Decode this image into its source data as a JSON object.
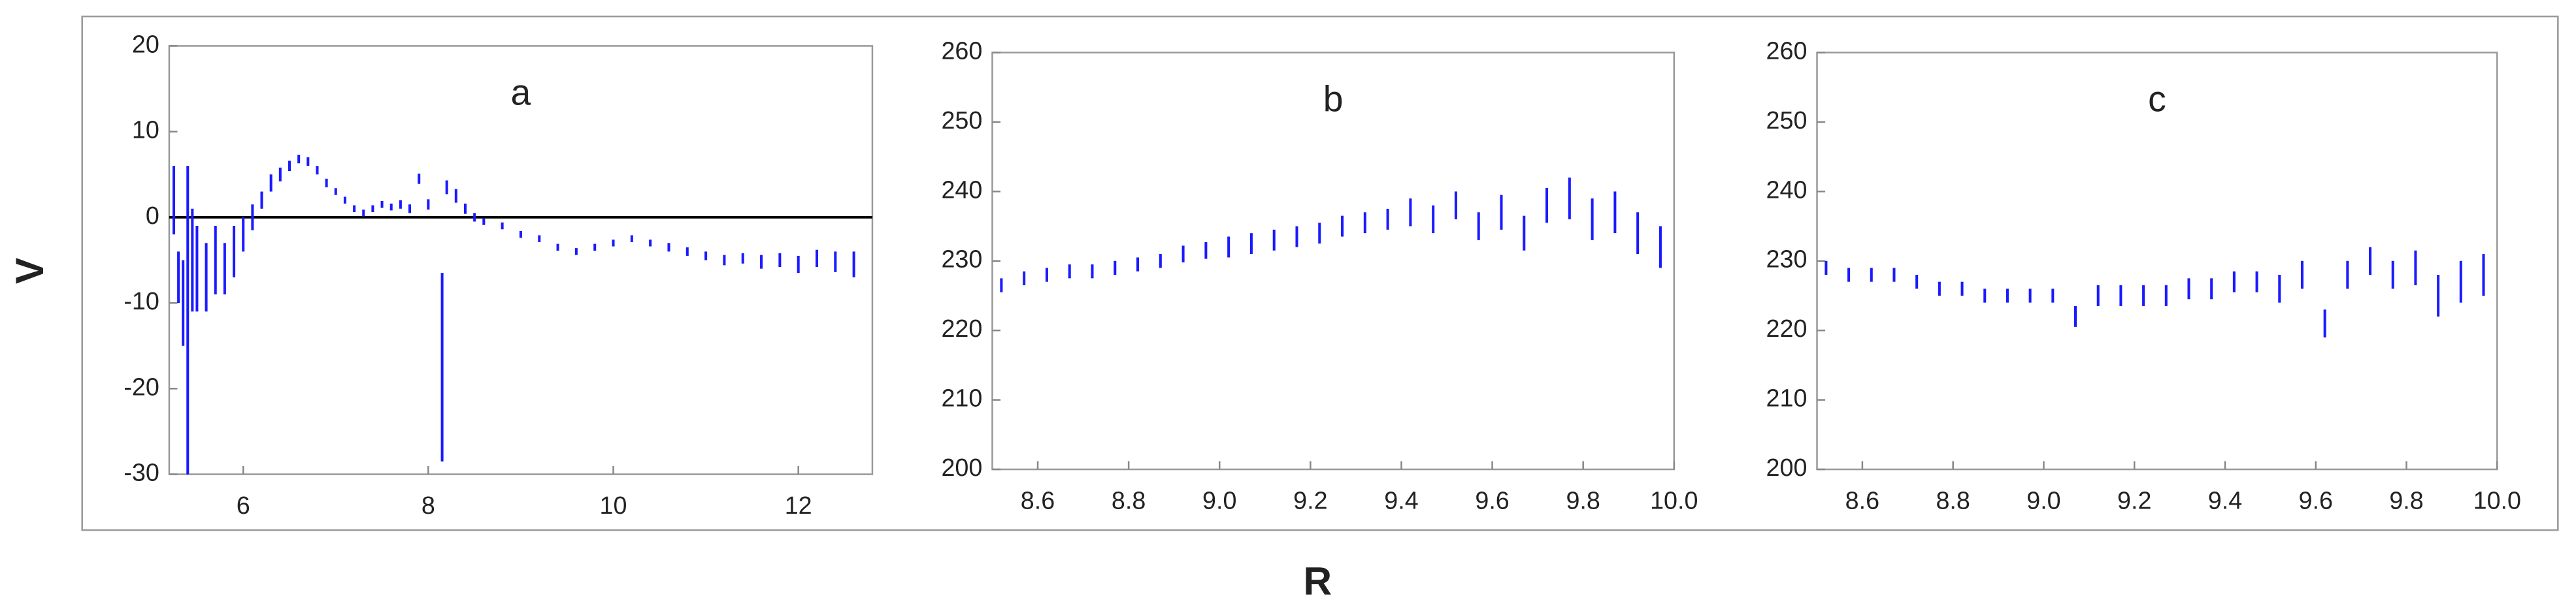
{
  "xlabel": "R",
  "ylabel": "V",
  "chart_data": [
    {
      "type": "errorbar",
      "title": "a",
      "color": "#1a1aff",
      "hline": 0,
      "xlim": [
        5.2,
        12.8
      ],
      "xticks": [
        6,
        8,
        10,
        12
      ],
      "ylim": [
        -30,
        20
      ],
      "yticks": [
        -30,
        -20,
        -10,
        0,
        10,
        20
      ],
      "x": [
        5.25,
        5.3,
        5.35,
        5.4,
        5.45,
        5.5,
        5.6,
        5.7,
        5.8,
        5.9,
        6.0,
        6.1,
        6.2,
        6.3,
        6.4,
        6.5,
        6.6,
        6.7,
        6.8,
        6.9,
        7.0,
        7.1,
        7.2,
        7.3,
        7.4,
        7.5,
        7.6,
        7.7,
        7.8,
        7.9,
        8.0,
        8.15,
        8.2,
        8.3,
        8.4,
        8.5,
        8.6,
        8.8,
        9.0,
        9.2,
        9.4,
        9.6,
        9.8,
        10.0,
        10.2,
        10.4,
        10.6,
        10.8,
        11.0,
        11.2,
        11.4,
        11.6,
        11.8,
        12.0,
        12.2,
        12.4,
        12.6
      ],
      "values": [
        2,
        -7,
        -10,
        -12,
        -5,
        -6,
        -7,
        -5,
        -6,
        -4,
        -2,
        0,
        2,
        4,
        5,
        6,
        6.8,
        6.5,
        5.5,
        4,
        3,
        2,
        1,
        0.5,
        1,
        1.5,
        1.2,
        1.5,
        1,
        4.5,
        1.5,
        -17.5,
        3.5,
        2.5,
        1,
        0,
        -0.5,
        -1,
        -2,
        -2.5,
        -3.5,
        -4,
        -3.5,
        -3,
        -2.5,
        -3,
        -3.5,
        -4,
        -4.5,
        -5,
        -4.8,
        -5.2,
        -5,
        -5.5,
        -4.8,
        -5.2,
        -5.5
      ],
      "errors": [
        4,
        3,
        5,
        18,
        6,
        5,
        4,
        4,
        3,
        3,
        2,
        1.5,
        1,
        1,
        0.8,
        0.6,
        0.5,
        0.5,
        0.5,
        0.5,
        0.4,
        0.4,
        0.4,
        0.4,
        0.4,
        0.4,
        0.4,
        0.5,
        0.5,
        0.6,
        0.6,
        11,
        0.8,
        0.8,
        0.6,
        0.5,
        0.4,
        0.4,
        0.4,
        0.4,
        0.4,
        0.4,
        0.4,
        0.4,
        0.4,
        0.4,
        0.5,
        0.5,
        0.5,
        0.6,
        0.6,
        0.8,
        0.8,
        1,
        1,
        1.2,
        1.5
      ]
    },
    {
      "type": "errorbar",
      "title": "b",
      "color": "#1a1aff",
      "xlim": [
        8.5,
        10.0
      ],
      "xticks": [
        8.6,
        8.8,
        {
          "value": 9,
          "label": "9.0"
        },
        9.2,
        9.4,
        9.6,
        9.8,
        {
          "value": 10,
          "label": "10.0"
        }
      ],
      "ylim": [
        200,
        260
      ],
      "yticks": [
        200,
        210,
        220,
        230,
        240,
        250,
        260
      ],
      "x": [
        8.52,
        8.57,
        8.62,
        8.67,
        8.72,
        8.77,
        8.82,
        8.87,
        8.92,
        8.97,
        9.02,
        9.07,
        9.12,
        9.17,
        9.22,
        9.27,
        9.32,
        9.37,
        9.42,
        9.47,
        9.52,
        9.57,
        9.62,
        9.67,
        9.72,
        9.77,
        9.82,
        9.87,
        9.92,
        9.97
      ],
      "values": [
        226.5,
        227.5,
        228,
        228.5,
        228.5,
        229,
        229.5,
        230,
        231,
        231.5,
        232,
        232.5,
        233,
        233.5,
        234,
        235,
        235.5,
        236,
        237,
        236,
        238,
        235,
        237,
        234,
        238,
        239,
        236,
        237,
        234,
        232
      ],
      "errors": [
        1,
        1,
        1,
        1,
        1,
        1,
        1,
        1,
        1.2,
        1.2,
        1.5,
        1.5,
        1.5,
        1.5,
        1.5,
        1.5,
        1.5,
        1.5,
        2,
        2,
        2,
        2,
        2.5,
        2.5,
        2.5,
        3,
        3,
        3,
        3,
        3
      ]
    },
    {
      "type": "errorbar",
      "title": "c",
      "color": "#1a1aff",
      "xlim": [
        8.5,
        10.0
      ],
      "xticks": [
        8.6,
        8.8,
        {
          "value": 9,
          "label": "9.0"
        },
        9.2,
        9.4,
        9.6,
        9.8,
        {
          "value": 10,
          "label": "10.0"
        }
      ],
      "ylim": [
        200,
        260
      ],
      "yticks": [
        200,
        210,
        220,
        230,
        240,
        250,
        260
      ],
      "x": [
        8.52,
        8.57,
        8.62,
        8.67,
        8.72,
        8.77,
        8.82,
        8.87,
        8.92,
        8.97,
        9.02,
        9.07,
        9.12,
        9.17,
        9.22,
        9.27,
        9.32,
        9.37,
        9.42,
        9.47,
        9.52,
        9.57,
        9.62,
        9.67,
        9.72,
        9.77,
        9.82,
        9.87,
        9.92,
        9.97
      ],
      "values": [
        229,
        228,
        228,
        228,
        227,
        226,
        226,
        225,
        225,
        225,
        225,
        222,
        225,
        225,
        225,
        225,
        226,
        226,
        227,
        227,
        226,
        228,
        221,
        228,
        230,
        228,
        229,
        225,
        227,
        228
      ],
      "errors": [
        1,
        1,
        1,
        1,
        1,
        1,
        1,
        1,
        1,
        1,
        1,
        1.5,
        1.5,
        1.5,
        1.5,
        1.5,
        1.5,
        1.5,
        1.5,
        1.5,
        2,
        2,
        2,
        2,
        2,
        2,
        2.5,
        3,
        3,
        3
      ]
    }
  ]
}
